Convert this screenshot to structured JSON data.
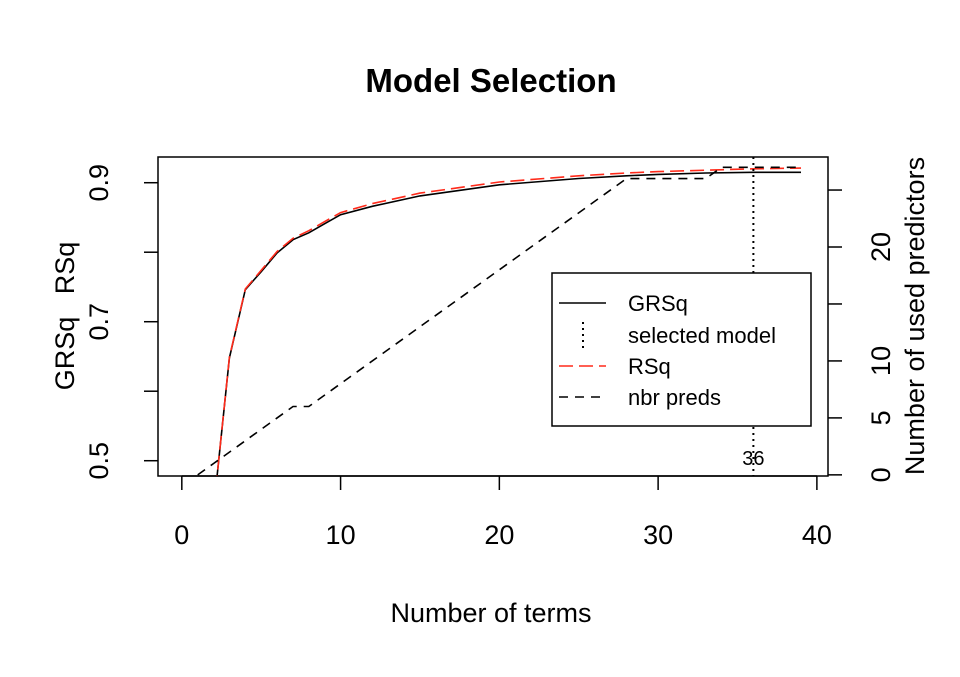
{
  "chart_data": {
    "type": "line",
    "title": "Model Selection",
    "xlabel": "Number of terms",
    "ylabel_left": "GRSq   RSq",
    "ylabel_right": "Number of used predictors",
    "xlim": [
      -1.5,
      40.7
    ],
    "ylim_left": [
      0.478,
      0.937
    ],
    "ylim_right": [
      -0.1,
      27.9
    ],
    "x_ticks": [
      0,
      10,
      20,
      30,
      40
    ],
    "y_left_ticks": [
      0.5,
      0.6,
      0.7,
      0.8,
      0.9
    ],
    "y_left_tick_labels": [
      "0.5",
      "",
      "0.7",
      "",
      "0.9"
    ],
    "y_right_ticks": [
      0,
      5,
      10,
      15,
      20,
      25
    ],
    "y_right_tick_labels": [
      "0",
      "5",
      "10",
      "",
      "20",
      ""
    ],
    "grid": false,
    "legend_position": "right",
    "selected_model": {
      "x": 36,
      "label": "36"
    },
    "series": [
      {
        "name": "GRSq",
        "axis": "left",
        "color": "#000000",
        "style": "solid",
        "x": [
          2,
          3,
          4,
          5,
          6,
          7,
          8,
          9,
          10,
          12,
          15,
          20,
          25,
          28,
          30,
          33,
          36,
          39
        ],
        "y": [
          0.43,
          0.648,
          0.746,
          0.772,
          0.799,
          0.818,
          0.828,
          0.841,
          0.854,
          0.866,
          0.881,
          0.897,
          0.906,
          0.91,
          0.912,
          0.914,
          0.915,
          0.915
        ]
      },
      {
        "name": "RSq",
        "axis": "left",
        "color": "#ff2a1a",
        "style": "longdash",
        "x": [
          2,
          3,
          4,
          5,
          6,
          7,
          8,
          9,
          10,
          12,
          15,
          20,
          25,
          28,
          30,
          33,
          36,
          39
        ],
        "y": [
          0.43,
          0.649,
          0.747,
          0.774,
          0.801,
          0.82,
          0.831,
          0.844,
          0.857,
          0.87,
          0.885,
          0.901,
          0.91,
          0.914,
          0.916,
          0.918,
          0.92,
          0.921
        ]
      },
      {
        "name": "nbr preds",
        "axis": "right",
        "color": "#000000",
        "style": "dashed",
        "x": [
          1,
          2,
          7,
          8,
          28,
          33,
          34,
          39
        ],
        "y": [
          0,
          1,
          6,
          6,
          26,
          26,
          27,
          27
        ]
      }
    ],
    "legend": [
      {
        "label": "GRSq",
        "style": "solid",
        "color": "#000000"
      },
      {
        "label": "selected model",
        "style": "dotted-vertical",
        "color": "#000000"
      },
      {
        "label": "RSq",
        "style": "longdash",
        "color": "#ff2a1a"
      },
      {
        "label": "nbr preds",
        "style": "dashed",
        "color": "#000000"
      }
    ]
  }
}
